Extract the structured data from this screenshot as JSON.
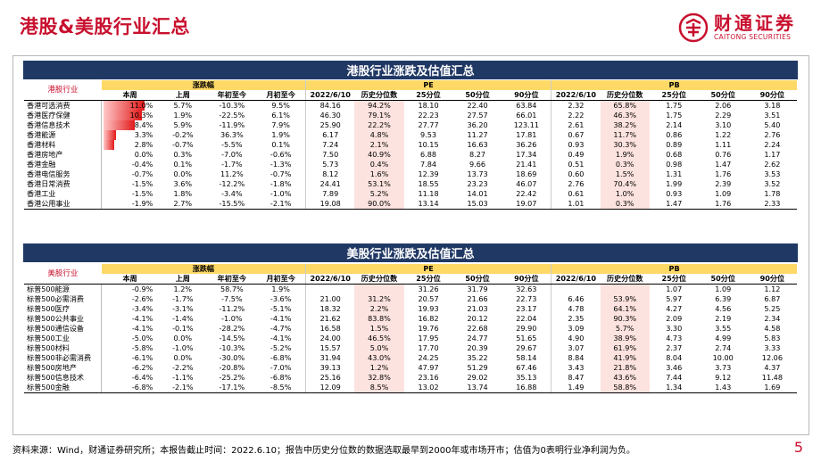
{
  "page_title": "港股&美股行业汇总",
  "logo": {
    "cn": "财通证券",
    "en": "CAITONG SECURITIES"
  },
  "hk": {
    "title": "港股行业涨跌及估值汇总",
    "section_label": "港股行业",
    "group_change": "涨跌幅",
    "group_pe": "PE",
    "group_pb": "PB",
    "columns": [
      "本周",
      "上周",
      "年初至今",
      "月初至今",
      "2022/6/10",
      "历史分位数",
      "25分位",
      "50分位",
      "90分位",
      "2022/6/10",
      "历史分位数",
      "25分位",
      "50分位",
      "90分位"
    ],
    "rows": [
      {
        "name": "香港可选消费",
        "week": "11.0%",
        "last": "5.7%",
        "ytd": "-10.3%",
        "mtd": "9.5%",
        "pe": "84.16",
        "pe_pct": "94.2%",
        "pe25": "18.10",
        "pe50": "22.40",
        "pe90": "63.84",
        "pb": "2.32",
        "pb_pct": "65.8%",
        "pb25": "1.75",
        "pb50": "2.06",
        "pb90": "3.18",
        "bar": 11.0
      },
      {
        "name": "香港医疗保健",
        "week": "10.3%",
        "last": "1.9%",
        "ytd": "-22.5%",
        "mtd": "6.1%",
        "pe": "46.30",
        "pe_pct": "79.1%",
        "pe25": "22.23",
        "pe50": "27.57",
        "pe90": "66.01",
        "pb": "2.22",
        "pb_pct": "46.3%",
        "pb25": "1.75",
        "pb50": "2.29",
        "pb90": "3.51",
        "bar": 10.3
      },
      {
        "name": "香港信息技术",
        "week": "8.4%",
        "last": "5.9%",
        "ytd": "-11.9%",
        "mtd": "7.9%",
        "pe": "25.90",
        "pe_pct": "22.2%",
        "pe25": "27.77",
        "pe50": "36.20",
        "pe90": "123.11",
        "pb": "2.61",
        "pb_pct": "38.2%",
        "pb25": "2.14",
        "pb50": "3.10",
        "pb90": "5.40",
        "bar": 8.4
      },
      {
        "name": "香港能源",
        "week": "3.3%",
        "last": "-0.2%",
        "ytd": "36.3%",
        "mtd": "1.9%",
        "pe": "6.17",
        "pe_pct": "4.8%",
        "pe25": "9.53",
        "pe50": "11.27",
        "pe90": "17.81",
        "pb": "0.67",
        "pb_pct": "11.7%",
        "pb25": "0.86",
        "pb50": "1.22",
        "pb90": "2.76",
        "bar": 3.3
      },
      {
        "name": "香港材料",
        "week": "2.8%",
        "last": "-0.7%",
        "ytd": "-5.5%",
        "mtd": "0.1%",
        "pe": "7.24",
        "pe_pct": "2.1%",
        "pe25": "10.15",
        "pe50": "16.63",
        "pe90": "36.26",
        "pb": "0.93",
        "pb_pct": "30.3%",
        "pb25": "0.89",
        "pb50": "1.11",
        "pb90": "2.24",
        "bar": 2.8
      },
      {
        "name": "香港房地产",
        "week": "0.0%",
        "last": "0.3%",
        "ytd": "-7.0%",
        "mtd": "-0.6%",
        "pe": "7.50",
        "pe_pct": "40.9%",
        "pe25": "6.88",
        "pe50": "8.27",
        "pe90": "17.34",
        "pb": "0.49",
        "pb_pct": "1.9%",
        "pb25": "0.68",
        "pb50": "0.76",
        "pb90": "1.17",
        "bar": 0.0
      },
      {
        "name": "香港金融",
        "week": "-0.4%",
        "last": "0.1%",
        "ytd": "-1.7%",
        "mtd": "-1.3%",
        "pe": "5.73",
        "pe_pct": "0.4%",
        "pe25": "7.84",
        "pe50": "9.66",
        "pe90": "21.41",
        "pb": "0.51",
        "pb_pct": "0.3%",
        "pb25": "0.98",
        "pb50": "1.47",
        "pb90": "2.62",
        "bar": -0.4
      },
      {
        "name": "香港电信服务",
        "week": "-0.7%",
        "last": "0.0%",
        "ytd": "11.2%",
        "mtd": "-0.7%",
        "pe": "8.12",
        "pe_pct": "1.6%",
        "pe25": "12.39",
        "pe50": "13.73",
        "pe90": "18.69",
        "pb": "0.60",
        "pb_pct": "1.5%",
        "pb25": "1.31",
        "pb50": "1.76",
        "pb90": "3.53",
        "bar": -0.7
      },
      {
        "name": "香港日常消费",
        "week": "-1.5%",
        "last": "3.6%",
        "ytd": "-12.2%",
        "mtd": "-1.8%",
        "pe": "24.41",
        "pe_pct": "53.1%",
        "pe25": "18.55",
        "pe50": "23.23",
        "pe90": "46.07",
        "pb": "2.76",
        "pb_pct": "70.4%",
        "pb25": "1.99",
        "pb50": "2.39",
        "pb90": "3.52",
        "bar": -1.5
      },
      {
        "name": "香港工业",
        "week": "-1.5%",
        "last": "1.8%",
        "ytd": "-3.4%",
        "mtd": "-1.0%",
        "pe": "7.89",
        "pe_pct": "5.2%",
        "pe25": "11.18",
        "pe50": "14.01",
        "pe90": "22.42",
        "pb": "0.61",
        "pb_pct": "1.0%",
        "pb25": "0.93",
        "pb50": "1.09",
        "pb90": "1.78",
        "bar": -1.5
      },
      {
        "name": "香港公用事业",
        "week": "-1.9%",
        "last": "2.7%",
        "ytd": "-15.5%",
        "mtd": "-2.1%",
        "pe": "19.08",
        "pe_pct": "90.0%",
        "pe25": "13.14",
        "pe50": "15.03",
        "pe90": "19.07",
        "pb": "1.01",
        "pb_pct": "0.3%",
        "pb25": "1.47",
        "pb50": "1.76",
        "pb90": "2.33",
        "bar": -1.9
      }
    ]
  },
  "us": {
    "title": "美股行业涨跌及估值汇总",
    "section_label": "美股行业",
    "group_change": "涨跌幅",
    "group_pe": "PE",
    "group_pb": "PB",
    "columns": [
      "本周",
      "上周",
      "年初至今",
      "月初至今",
      "2022/6/10",
      "历史分位数",
      "25分位",
      "50分位",
      "90分位",
      "2022/6/10",
      "历史分位数",
      "25分位",
      "50分位",
      "90分位"
    ],
    "rows": [
      {
        "name": "标普500能源",
        "week": "-0.9%",
        "last": "1.2%",
        "ytd": "58.7%",
        "mtd": "1.9%",
        "pe": "",
        "pe_pct": "",
        "pe25": "31.26",
        "pe50": "31.79",
        "pe90": "32.63",
        "pb": "",
        "pb_pct": "",
        "pb25": "1.07",
        "pb50": "1.09",
        "pb90": "1.12",
        "bar": -0.9
      },
      {
        "name": "标普500必需消费",
        "week": "-2.6%",
        "last": "-1.7%",
        "ytd": "-7.5%",
        "mtd": "-3.6%",
        "pe": "21.00",
        "pe_pct": "31.2%",
        "pe25": "20.57",
        "pe50": "21.66",
        "pe90": "22.73",
        "pb": "6.46",
        "pb_pct": "53.9%",
        "pb25": "5.97",
        "pb50": "6.39",
        "pb90": "6.87",
        "bar": -2.6
      },
      {
        "name": "标普500医疗",
        "week": "-3.4%",
        "last": "-3.1%",
        "ytd": "-11.2%",
        "mtd": "-5.1%",
        "pe": "18.32",
        "pe_pct": "2.2%",
        "pe25": "19.93",
        "pe50": "21.03",
        "pe90": "23.17",
        "pb": "4.78",
        "pb_pct": "64.1%",
        "pb25": "4.27",
        "pb50": "4.56",
        "pb90": "5.25",
        "bar": -3.4
      },
      {
        "name": "标普500公共事业",
        "week": "-4.1%",
        "last": "-1.4%",
        "ytd": "-1.0%",
        "mtd": "-4.1%",
        "pe": "21.62",
        "pe_pct": "83.8%",
        "pe25": "16.82",
        "pe50": "20.12",
        "pe90": "22.04",
        "pb": "2.35",
        "pb_pct": "90.3%",
        "pb25": "2.09",
        "pb50": "2.19",
        "pb90": "2.34",
        "bar": -4.1
      },
      {
        "name": "标普500通信设备",
        "week": "-4.1%",
        "last": "-0.1%",
        "ytd": "-28.2%",
        "mtd": "-4.7%",
        "pe": "16.58",
        "pe_pct": "1.5%",
        "pe25": "19.76",
        "pe50": "22.68",
        "pe90": "29.90",
        "pb": "3.09",
        "pb_pct": "5.7%",
        "pb25": "3.30",
        "pb50": "3.55",
        "pb90": "4.58",
        "bar": -4.1
      },
      {
        "name": "标普500工业",
        "week": "-5.0%",
        "last": "0.0%",
        "ytd": "-14.5%",
        "mtd": "-4.1%",
        "pe": "24.00",
        "pe_pct": "46.5%",
        "pe25": "17.95",
        "pe50": "24.77",
        "pe90": "51.65",
        "pb": "4.90",
        "pb_pct": "38.9%",
        "pb25": "4.73",
        "pb50": "4.99",
        "pb90": "5.83",
        "bar": -5.0
      },
      {
        "name": "标普500材料",
        "week": "-5.8%",
        "last": "-1.0%",
        "ytd": "-10.3%",
        "mtd": "-5.2%",
        "pe": "15.57",
        "pe_pct": "5.0%",
        "pe25": "17.70",
        "pe50": "20.39",
        "pe90": "29.67",
        "pb": "3.07",
        "pb_pct": "61.9%",
        "pb25": "2.37",
        "pb50": "2.74",
        "pb90": "3.33",
        "bar": -5.8
      },
      {
        "name": "标普500非必需消费",
        "week": "-6.1%",
        "last": "0.0%",
        "ytd": "-30.0%",
        "mtd": "-6.8%",
        "pe": "31.94",
        "pe_pct": "43.0%",
        "pe25": "24.25",
        "pe50": "35.22",
        "pe90": "58.14",
        "pb": "8.84",
        "pb_pct": "41.9%",
        "pb25": "8.04",
        "pb50": "10.00",
        "pb90": "12.06",
        "bar": -6.1
      },
      {
        "name": "标普500房地产",
        "week": "-6.2%",
        "last": "-2.2%",
        "ytd": "-20.8%",
        "mtd": "-7.0%",
        "pe": "39.13",
        "pe_pct": "1.2%",
        "pe25": "47.97",
        "pe50": "51.29",
        "pe90": "67.46",
        "pb": "3.43",
        "pb_pct": "21.8%",
        "pb25": "3.46",
        "pb50": "3.73",
        "pb90": "4.37",
        "bar": -6.2
      },
      {
        "name": "标普500信息技术",
        "week": "-6.4%",
        "last": "-1.1%",
        "ytd": "-25.2%",
        "mtd": "-6.8%",
        "pe": "25.16",
        "pe_pct": "32.8%",
        "pe25": "23.16",
        "pe50": "29.02",
        "pe90": "35.13",
        "pb": "8.47",
        "pb_pct": "43.6%",
        "pb25": "7.44",
        "pb50": "9.12",
        "pb90": "11.48",
        "bar": -6.4
      },
      {
        "name": "标普500金融",
        "week": "-6.8%",
        "last": "-2.1%",
        "ytd": "-17.1%",
        "mtd": "-8.5%",
        "pe": "12.09",
        "pe_pct": "8.5%",
        "pe25": "13.02",
        "pe50": "13.74",
        "pe90": "16.88",
        "pb": "1.49",
        "pb_pct": "58.8%",
        "pb25": "1.34",
        "pb50": "1.43",
        "pb90": "1.69",
        "bar": -6.8
      }
    ]
  },
  "footer": "资料来源：Wind，财通证券研究所；本报告截止时间：2022.6.10；报告中历史分位数的数据选取最早到2000年或市场开市；估值为0表明行业净利润为负。",
  "page_number": "5",
  "colors": {
    "brand": "#c8102e",
    "band": "#203864",
    "header_fill": "#ffd966",
    "highlight": "#fde3df"
  }
}
